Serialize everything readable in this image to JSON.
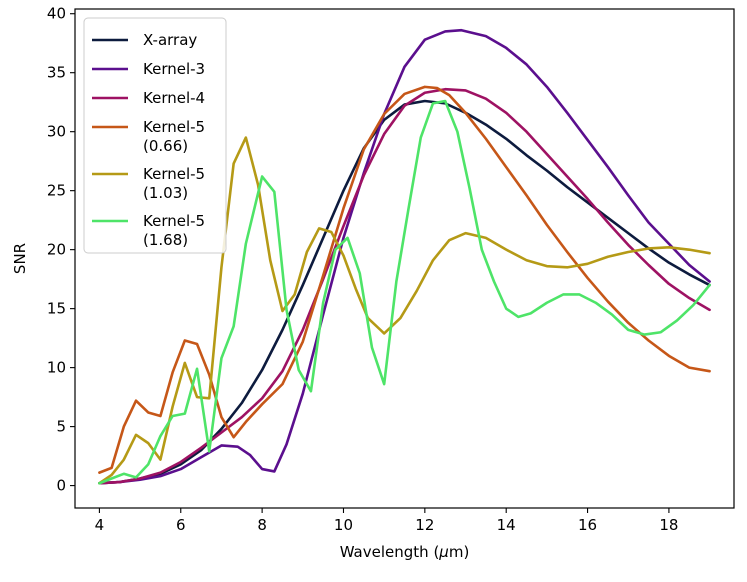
{
  "chart_data": {
    "type": "line",
    "title": "",
    "xlabel": "Wavelength (μm)",
    "ylabel": "SNR",
    "xlim": [
      3.4,
      19.6
    ],
    "ylim": [
      -1.9,
      40.4
    ],
    "xticks": [
      4,
      6,
      8,
      10,
      12,
      14,
      16,
      18
    ],
    "yticks": [
      0,
      5,
      10,
      15,
      20,
      25,
      30,
      35,
      40
    ],
    "grid": false,
    "legend_position": "top-left",
    "series": [
      {
        "name": "X-array",
        "color": "#0d1b3e",
        "x": [
          4.0,
          4.5,
          5.0,
          5.5,
          6.0,
          6.5,
          7.0,
          7.5,
          8.0,
          8.5,
          9.0,
          9.5,
          10.0,
          10.5,
          11.0,
          11.5,
          12.0,
          12.5,
          13.0,
          13.5,
          14.0,
          14.5,
          15.0,
          15.5,
          16.0,
          16.5,
          17.0,
          17.5,
          18.0,
          18.5,
          19.0
        ],
        "y": [
          0.2,
          0.3,
          0.6,
          1.0,
          1.8,
          3.0,
          4.8,
          7.0,
          9.8,
          13.2,
          17.0,
          21.0,
          25.0,
          28.6,
          31.0,
          32.3,
          32.6,
          32.4,
          31.6,
          30.6,
          29.4,
          28.0,
          26.7,
          25.3,
          24.0,
          22.7,
          21.4,
          20.1,
          18.9,
          17.9,
          17.0
        ]
      },
      {
        "name": "Kernel-3",
        "color": "#5b0f8e",
        "x": [
          4.0,
          4.5,
          5.0,
          5.5,
          6.0,
          6.5,
          7.0,
          7.4,
          7.7,
          8.0,
          8.3,
          8.6,
          9.0,
          9.5,
          10.0,
          10.5,
          11.0,
          11.5,
          12.0,
          12.5,
          12.9,
          13.5,
          14.0,
          14.5,
          15.0,
          15.5,
          16.0,
          16.5,
          17.0,
          17.5,
          18.0,
          18.5,
          19.0
        ],
        "y": [
          0.2,
          0.3,
          0.5,
          0.8,
          1.4,
          2.4,
          3.4,
          3.3,
          2.6,
          1.4,
          1.2,
          3.5,
          7.8,
          14.5,
          21.0,
          26.5,
          31.5,
          35.5,
          37.8,
          38.5,
          38.6,
          38.1,
          37.1,
          35.7,
          33.8,
          31.6,
          29.3,
          27.0,
          24.6,
          22.3,
          20.5,
          18.7,
          17.3
        ]
      },
      {
        "name": "Kernel-4",
        "color": "#9e1263",
        "x": [
          4.0,
          4.5,
          5.0,
          5.5,
          6.0,
          6.5,
          7.0,
          7.5,
          8.0,
          8.5,
          9.0,
          9.5,
          10.0,
          10.5,
          11.0,
          11.5,
          12.0,
          12.5,
          13.0,
          13.5,
          14.0,
          14.5,
          15.0,
          15.5,
          16.0,
          16.5,
          17.0,
          17.5,
          18.0,
          18.5,
          19.0
        ],
        "y": [
          0.2,
          0.3,
          0.6,
          1.1,
          2.0,
          3.2,
          4.5,
          5.8,
          7.4,
          9.7,
          13.2,
          17.5,
          22.0,
          26.3,
          29.8,
          32.2,
          33.3,
          33.6,
          33.5,
          32.8,
          31.6,
          30.0,
          28.1,
          26.2,
          24.3,
          22.3,
          20.4,
          18.7,
          17.1,
          15.9,
          14.9
        ]
      },
      {
        "name": "Kernel-5\n(0.66)",
        "color": "#c65718",
        "x": [
          4.0,
          4.3,
          4.6,
          4.9,
          5.2,
          5.5,
          5.8,
          6.1,
          6.4,
          6.7,
          7.0,
          7.3,
          7.6,
          8.0,
          8.5,
          9.0,
          9.5,
          10.0,
          10.5,
          11.0,
          11.5,
          12.0,
          12.3,
          12.6,
          13.0,
          13.5,
          14.0,
          14.5,
          15.0,
          15.5,
          16.0,
          16.5,
          17.0,
          17.5,
          18.0,
          18.5,
          19.0
        ],
        "y": [
          1.1,
          1.5,
          5.0,
          7.2,
          6.2,
          5.9,
          9.6,
          12.3,
          12.0,
          9.4,
          5.8,
          4.1,
          5.4,
          6.9,
          8.6,
          12.2,
          17.8,
          23.5,
          28.5,
          31.5,
          33.2,
          33.8,
          33.7,
          33.1,
          31.6,
          29.4,
          27.0,
          24.6,
          22.1,
          19.8,
          17.6,
          15.6,
          13.8,
          12.3,
          11.0,
          10.0,
          9.7
        ]
      },
      {
        "name": "Kernel-5\n(1.03)",
        "color": "#b59a16",
        "x": [
          4.0,
          4.3,
          4.6,
          4.9,
          5.2,
          5.5,
          5.8,
          6.1,
          6.4,
          6.7,
          7.0,
          7.3,
          7.6,
          7.9,
          8.2,
          8.5,
          8.8,
          9.1,
          9.4,
          9.7,
          10.0,
          10.3,
          10.6,
          11.0,
          11.4,
          11.8,
          12.2,
          12.6,
          13.0,
          13.5,
          14.0,
          14.5,
          15.0,
          15.5,
          16.0,
          16.5,
          17.0,
          17.5,
          18.0,
          18.5,
          19.0
        ],
        "y": [
          0.2,
          0.9,
          2.2,
          4.3,
          3.6,
          2.2,
          6.7,
          10.4,
          7.5,
          7.4,
          18.5,
          27.3,
          29.5,
          25.5,
          19.1,
          14.8,
          16.2,
          19.8,
          21.8,
          21.5,
          19.5,
          16.7,
          14.2,
          12.9,
          14.2,
          16.5,
          19.1,
          20.8,
          21.4,
          21.0,
          20.0,
          19.1,
          18.6,
          18.5,
          18.8,
          19.4,
          19.8,
          20.1,
          20.2,
          20.0,
          19.7
        ]
      },
      {
        "name": "Kernel-5\n(1.68)",
        "color": "#4ee468",
        "x": [
          4.0,
          4.3,
          4.6,
          4.9,
          5.2,
          5.5,
          5.8,
          6.1,
          6.4,
          6.7,
          7.0,
          7.3,
          7.6,
          8.0,
          8.3,
          8.6,
          8.9,
          9.2,
          9.5,
          9.8,
          10.1,
          10.4,
          10.7,
          11.0,
          11.3,
          11.6,
          11.9,
          12.2,
          12.5,
          12.8,
          13.1,
          13.4,
          13.7,
          14.0,
          14.3,
          14.6,
          15.0,
          15.4,
          15.8,
          16.2,
          16.6,
          17.0,
          17.4,
          17.8,
          18.2,
          18.6,
          19.0
        ],
        "y": [
          0.2,
          0.6,
          1.0,
          0.7,
          1.8,
          4.2,
          5.9,
          6.1,
          9.9,
          2.9,
          10.8,
          13.5,
          20.5,
          26.2,
          24.9,
          14.9,
          9.8,
          8.0,
          15.5,
          20.0,
          21.0,
          18.0,
          11.7,
          8.6,
          17.3,
          23.5,
          29.5,
          32.4,
          32.6,
          30.0,
          25.2,
          20.0,
          17.3,
          15.0,
          14.3,
          14.6,
          15.5,
          16.2,
          16.2,
          15.5,
          14.5,
          13.2,
          12.8,
          13.0,
          14.0,
          15.3,
          17.0
        ]
      }
    ]
  }
}
